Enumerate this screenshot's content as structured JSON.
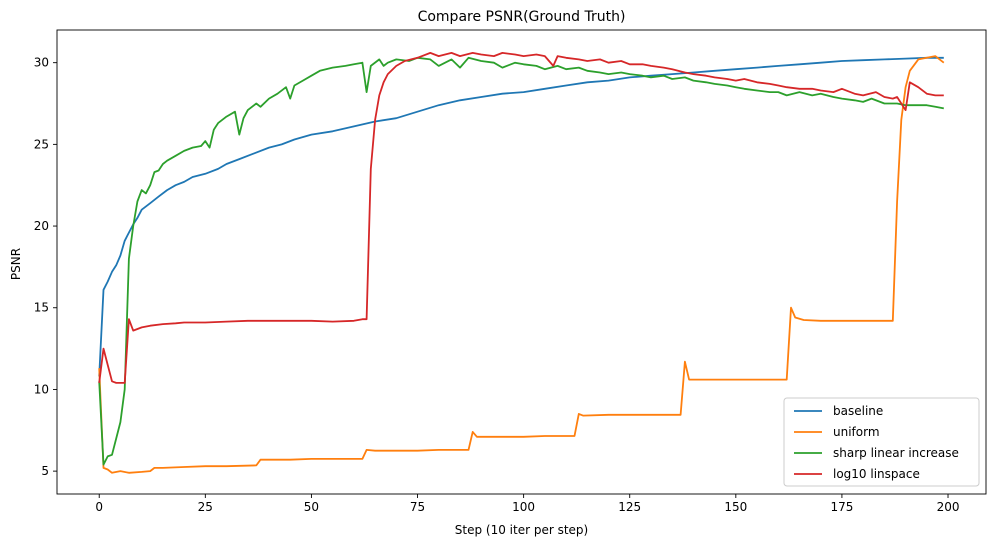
{
  "chart_data": {
    "type": "line",
    "title": "Compare PSNR(Ground Truth)",
    "xlabel": "Step (10 iter per step)",
    "ylabel": "PSNR",
    "xlim": [
      -9.95,
      208.95
    ],
    "ylim": [
      3.6,
      32.0
    ],
    "xticks": [
      0,
      25,
      50,
      75,
      100,
      125,
      150,
      175,
      200
    ],
    "yticks": [
      5,
      10,
      15,
      20,
      25,
      30
    ],
    "grid": false,
    "legend_position": "lower-right",
    "series": [
      {
        "name": "baseline",
        "color": "#1f77b4",
        "points": [
          [
            0,
            10.8
          ],
          [
            1,
            16.1
          ],
          [
            2,
            16.6
          ],
          [
            3,
            17.2
          ],
          [
            4,
            17.6
          ],
          [
            5,
            18.2
          ],
          [
            6,
            19.1
          ],
          [
            7,
            19.6
          ],
          [
            8,
            20.1
          ],
          [
            9,
            20.5
          ],
          [
            10,
            21.0
          ],
          [
            12,
            21.4
          ],
          [
            14,
            21.8
          ],
          [
            16,
            22.2
          ],
          [
            18,
            22.5
          ],
          [
            20,
            22.7
          ],
          [
            22,
            23.0
          ],
          [
            25,
            23.2
          ],
          [
            28,
            23.5
          ],
          [
            30,
            23.8
          ],
          [
            33,
            24.1
          ],
          [
            36,
            24.4
          ],
          [
            40,
            24.8
          ],
          [
            43,
            25.0
          ],
          [
            46,
            25.3
          ],
          [
            50,
            25.6
          ],
          [
            55,
            25.8
          ],
          [
            60,
            26.1
          ],
          [
            65,
            26.4
          ],
          [
            70,
            26.6
          ],
          [
            75,
            27.0
          ],
          [
            80,
            27.4
          ],
          [
            85,
            27.7
          ],
          [
            90,
            27.9
          ],
          [
            95,
            28.1
          ],
          [
            100,
            28.2
          ],
          [
            105,
            28.4
          ],
          [
            110,
            28.6
          ],
          [
            115,
            28.8
          ],
          [
            120,
            28.9
          ],
          [
            125,
            29.1
          ],
          [
            130,
            29.2
          ],
          [
            135,
            29.3
          ],
          [
            140,
            29.4
          ],
          [
            145,
            29.5
          ],
          [
            150,
            29.6
          ],
          [
            155,
            29.7
          ],
          [
            160,
            29.8
          ],
          [
            165,
            29.9
          ],
          [
            170,
            30.0
          ],
          [
            175,
            30.1
          ],
          [
            180,
            30.15
          ],
          [
            185,
            30.2
          ],
          [
            190,
            30.25
          ],
          [
            195,
            30.3
          ],
          [
            199,
            30.3
          ]
        ]
      },
      {
        "name": "uniform",
        "color": "#ff7f0e",
        "points": [
          [
            0,
            11.3
          ],
          [
            1,
            5.2
          ],
          [
            2,
            5.1
          ],
          [
            3,
            4.9
          ],
          [
            5,
            5.0
          ],
          [
            7,
            4.9
          ],
          [
            10,
            4.95
          ],
          [
            12,
            5.0
          ],
          [
            13,
            5.2
          ],
          [
            15,
            5.2
          ],
          [
            20,
            5.25
          ],
          [
            25,
            5.3
          ],
          [
            30,
            5.3
          ],
          [
            37,
            5.35
          ],
          [
            38,
            5.7
          ],
          [
            40,
            5.7
          ],
          [
            45,
            5.7
          ],
          [
            50,
            5.75
          ],
          [
            55,
            5.75
          ],
          [
            62,
            5.75
          ],
          [
            63,
            6.3
          ],
          [
            65,
            6.25
          ],
          [
            70,
            6.25
          ],
          [
            75,
            6.25
          ],
          [
            80,
            6.3
          ],
          [
            87,
            6.3
          ],
          [
            88,
            7.4
          ],
          [
            89,
            7.1
          ],
          [
            95,
            7.1
          ],
          [
            100,
            7.1
          ],
          [
            105,
            7.15
          ],
          [
            112,
            7.15
          ],
          [
            113,
            8.5
          ],
          [
            114,
            8.4
          ],
          [
            120,
            8.45
          ],
          [
            125,
            8.45
          ],
          [
            130,
            8.45
          ],
          [
            137,
            8.45
          ],
          [
            138,
            11.7
          ],
          [
            139,
            10.6
          ],
          [
            141,
            10.6
          ],
          [
            145,
            10.6
          ],
          [
            150,
            10.6
          ],
          [
            155,
            10.6
          ],
          [
            162,
            10.6
          ],
          [
            163,
            15.0
          ],
          [
            164,
            14.4
          ],
          [
            166,
            14.25
          ],
          [
            170,
            14.2
          ],
          [
            175,
            14.2
          ],
          [
            180,
            14.2
          ],
          [
            187,
            14.2
          ],
          [
            188,
            21.5
          ],
          [
            189,
            26.5
          ],
          [
            190,
            28.5
          ],
          [
            191,
            29.5
          ],
          [
            193,
            30.2
          ],
          [
            195,
            30.3
          ],
          [
            197,
            30.4
          ],
          [
            199,
            30.0
          ]
        ]
      },
      {
        "name": "sharp linear increase",
        "color": "#2ca02c",
        "points": [
          [
            0,
            10.5
          ],
          [
            1,
            5.4
          ],
          [
            2,
            5.9
          ],
          [
            3,
            6.0
          ],
          [
            4,
            7.0
          ],
          [
            5,
            8.0
          ],
          [
            6,
            10.0
          ],
          [
            7,
            18.0
          ],
          [
            8,
            20.0
          ],
          [
            9,
            21.5
          ],
          [
            10,
            22.2
          ],
          [
            11,
            22.0
          ],
          [
            12,
            22.5
          ],
          [
            13,
            23.3
          ],
          [
            14,
            23.4
          ],
          [
            15,
            23.8
          ],
          [
            16,
            24.0
          ],
          [
            18,
            24.3
          ],
          [
            20,
            24.6
          ],
          [
            22,
            24.8
          ],
          [
            24,
            24.9
          ],
          [
            25,
            25.2
          ],
          [
            26,
            24.8
          ],
          [
            27,
            25.9
          ],
          [
            28,
            26.3
          ],
          [
            30,
            26.7
          ],
          [
            32,
            27.0
          ],
          [
            33,
            25.6
          ],
          [
            34,
            26.6
          ],
          [
            35,
            27.1
          ],
          [
            37,
            27.5
          ],
          [
            38,
            27.3
          ],
          [
            40,
            27.8
          ],
          [
            42,
            28.1
          ],
          [
            44,
            28.5
          ],
          [
            45,
            27.8
          ],
          [
            46,
            28.6
          ],
          [
            48,
            28.9
          ],
          [
            50,
            29.2
          ],
          [
            52,
            29.5
          ],
          [
            55,
            29.7
          ],
          [
            58,
            29.8
          ],
          [
            60,
            29.9
          ],
          [
            62,
            30.0
          ],
          [
            63,
            28.2
          ],
          [
            64,
            29.8
          ],
          [
            66,
            30.2
          ],
          [
            67,
            29.8
          ],
          [
            68,
            30.0
          ],
          [
            70,
            30.2
          ],
          [
            73,
            30.1
          ],
          [
            75,
            30.3
          ],
          [
            78,
            30.2
          ],
          [
            80,
            29.8
          ],
          [
            83,
            30.2
          ],
          [
            85,
            29.7
          ],
          [
            87,
            30.3
          ],
          [
            90,
            30.1
          ],
          [
            93,
            30.0
          ],
          [
            95,
            29.7
          ],
          [
            98,
            30.0
          ],
          [
            100,
            29.9
          ],
          [
            103,
            29.8
          ],
          [
            105,
            29.6
          ],
          [
            108,
            29.8
          ],
          [
            110,
            29.6
          ],
          [
            113,
            29.7
          ],
          [
            115,
            29.5
          ],
          [
            118,
            29.4
          ],
          [
            120,
            29.3
          ],
          [
            123,
            29.4
          ],
          [
            125,
            29.3
          ],
          [
            128,
            29.2
          ],
          [
            130,
            29.1
          ],
          [
            133,
            29.2
          ],
          [
            135,
            29.0
          ],
          [
            138,
            29.1
          ],
          [
            140,
            28.9
          ],
          [
            143,
            28.8
          ],
          [
            145,
            28.7
          ],
          [
            148,
            28.6
          ],
          [
            150,
            28.5
          ],
          [
            152,
            28.4
          ],
          [
            155,
            28.3
          ],
          [
            158,
            28.2
          ],
          [
            160,
            28.2
          ],
          [
            162,
            28.0
          ],
          [
            165,
            28.2
          ],
          [
            168,
            28.0
          ],
          [
            170,
            28.1
          ],
          [
            173,
            27.9
          ],
          [
            175,
            27.8
          ],
          [
            178,
            27.7
          ],
          [
            180,
            27.6
          ],
          [
            182,
            27.8
          ],
          [
            185,
            27.5
          ],
          [
            188,
            27.5
          ],
          [
            190,
            27.4
          ],
          [
            193,
            27.4
          ],
          [
            195,
            27.4
          ],
          [
            197,
            27.3
          ],
          [
            199,
            27.2
          ]
        ]
      },
      {
        "name": "log10 linspace",
        "color": "#d62728",
        "points": [
          [
            0,
            10.4
          ],
          [
            1,
            12.5
          ],
          [
            2,
            11.5
          ],
          [
            3,
            10.5
          ],
          [
            4,
            10.4
          ],
          [
            5,
            10.4
          ],
          [
            6,
            10.4
          ],
          [
            7,
            14.3
          ],
          [
            8,
            13.6
          ],
          [
            10,
            13.8
          ],
          [
            12,
            13.9
          ],
          [
            15,
            14.0
          ],
          [
            18,
            14.05
          ],
          [
            20,
            14.1
          ],
          [
            25,
            14.1
          ],
          [
            30,
            14.15
          ],
          [
            35,
            14.2
          ],
          [
            40,
            14.2
          ],
          [
            45,
            14.2
          ],
          [
            50,
            14.2
          ],
          [
            55,
            14.15
          ],
          [
            60,
            14.2
          ],
          [
            62,
            14.3
          ],
          [
            63,
            14.3
          ],
          [
            64,
            23.5
          ],
          [
            65,
            26.5
          ],
          [
            66,
            28.0
          ],
          [
            67,
            28.8
          ],
          [
            68,
            29.3
          ],
          [
            70,
            29.8
          ],
          [
            72,
            30.1
          ],
          [
            75,
            30.3
          ],
          [
            78,
            30.6
          ],
          [
            80,
            30.4
          ],
          [
            83,
            30.6
          ],
          [
            85,
            30.4
          ],
          [
            88,
            30.6
          ],
          [
            90,
            30.5
          ],
          [
            93,
            30.4
          ],
          [
            95,
            30.6
          ],
          [
            98,
            30.5
          ],
          [
            100,
            30.4
          ],
          [
            103,
            30.5
          ],
          [
            105,
            30.4
          ],
          [
            107,
            29.8
          ],
          [
            108,
            30.4
          ],
          [
            110,
            30.3
          ],
          [
            113,
            30.2
          ],
          [
            115,
            30.1
          ],
          [
            118,
            30.2
          ],
          [
            120,
            30.0
          ],
          [
            123,
            30.1
          ],
          [
            125,
            29.9
          ],
          [
            128,
            29.9
          ],
          [
            130,
            29.8
          ],
          [
            133,
            29.7
          ],
          [
            135,
            29.6
          ],
          [
            138,
            29.4
          ],
          [
            140,
            29.3
          ],
          [
            143,
            29.2
          ],
          [
            145,
            29.1
          ],
          [
            148,
            29.0
          ],
          [
            150,
            28.9
          ],
          [
            152,
            29.0
          ],
          [
            155,
            28.8
          ],
          [
            158,
            28.7
          ],
          [
            160,
            28.6
          ],
          [
            162,
            28.5
          ],
          [
            165,
            28.4
          ],
          [
            168,
            28.4
          ],
          [
            170,
            28.3
          ],
          [
            173,
            28.2
          ],
          [
            175,
            28.4
          ],
          [
            178,
            28.1
          ],
          [
            180,
            28.0
          ],
          [
            183,
            28.2
          ],
          [
            185,
            27.9
          ],
          [
            187,
            27.8
          ],
          [
            188,
            27.9
          ],
          [
            190,
            27.1
          ],
          [
            191,
            28.8
          ],
          [
            193,
            28.5
          ],
          [
            195,
            28.1
          ],
          [
            197,
            28.0
          ],
          [
            199,
            28.0
          ]
        ]
      }
    ]
  }
}
